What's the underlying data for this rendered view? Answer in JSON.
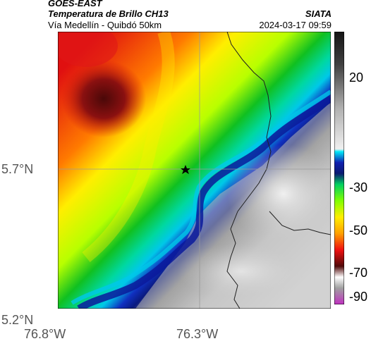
{
  "header": {
    "satellite": "GOES-EAST",
    "product": "Temperatura de Brillo CH13",
    "region": "Vía Medellín - Quibdó 50km",
    "agency": "SIATA",
    "datetime": "2024-03-17 09:59"
  },
  "map": {
    "lat_labels": [
      "5.7°N",
      "5.2°N"
    ],
    "lon_labels": [
      "76.8°W",
      "76.3°W"
    ],
    "marker_icon": "star-icon"
  },
  "colorbar": {
    "ticks": [
      "20",
      "-30",
      "-50",
      "-70",
      "-90"
    ],
    "colors": {
      "warm_light": "#f4f4f4",
      "warm_dark": "#1a1a1a",
      "cyan": "#00c8e8",
      "blue": "#1030c0",
      "green": "#10c020",
      "yellow": "#ffee00",
      "orange": "#ff7a00",
      "red": "#e81010",
      "dark_red": "#5a0a0a",
      "magenta": "#c030c0"
    }
  }
}
